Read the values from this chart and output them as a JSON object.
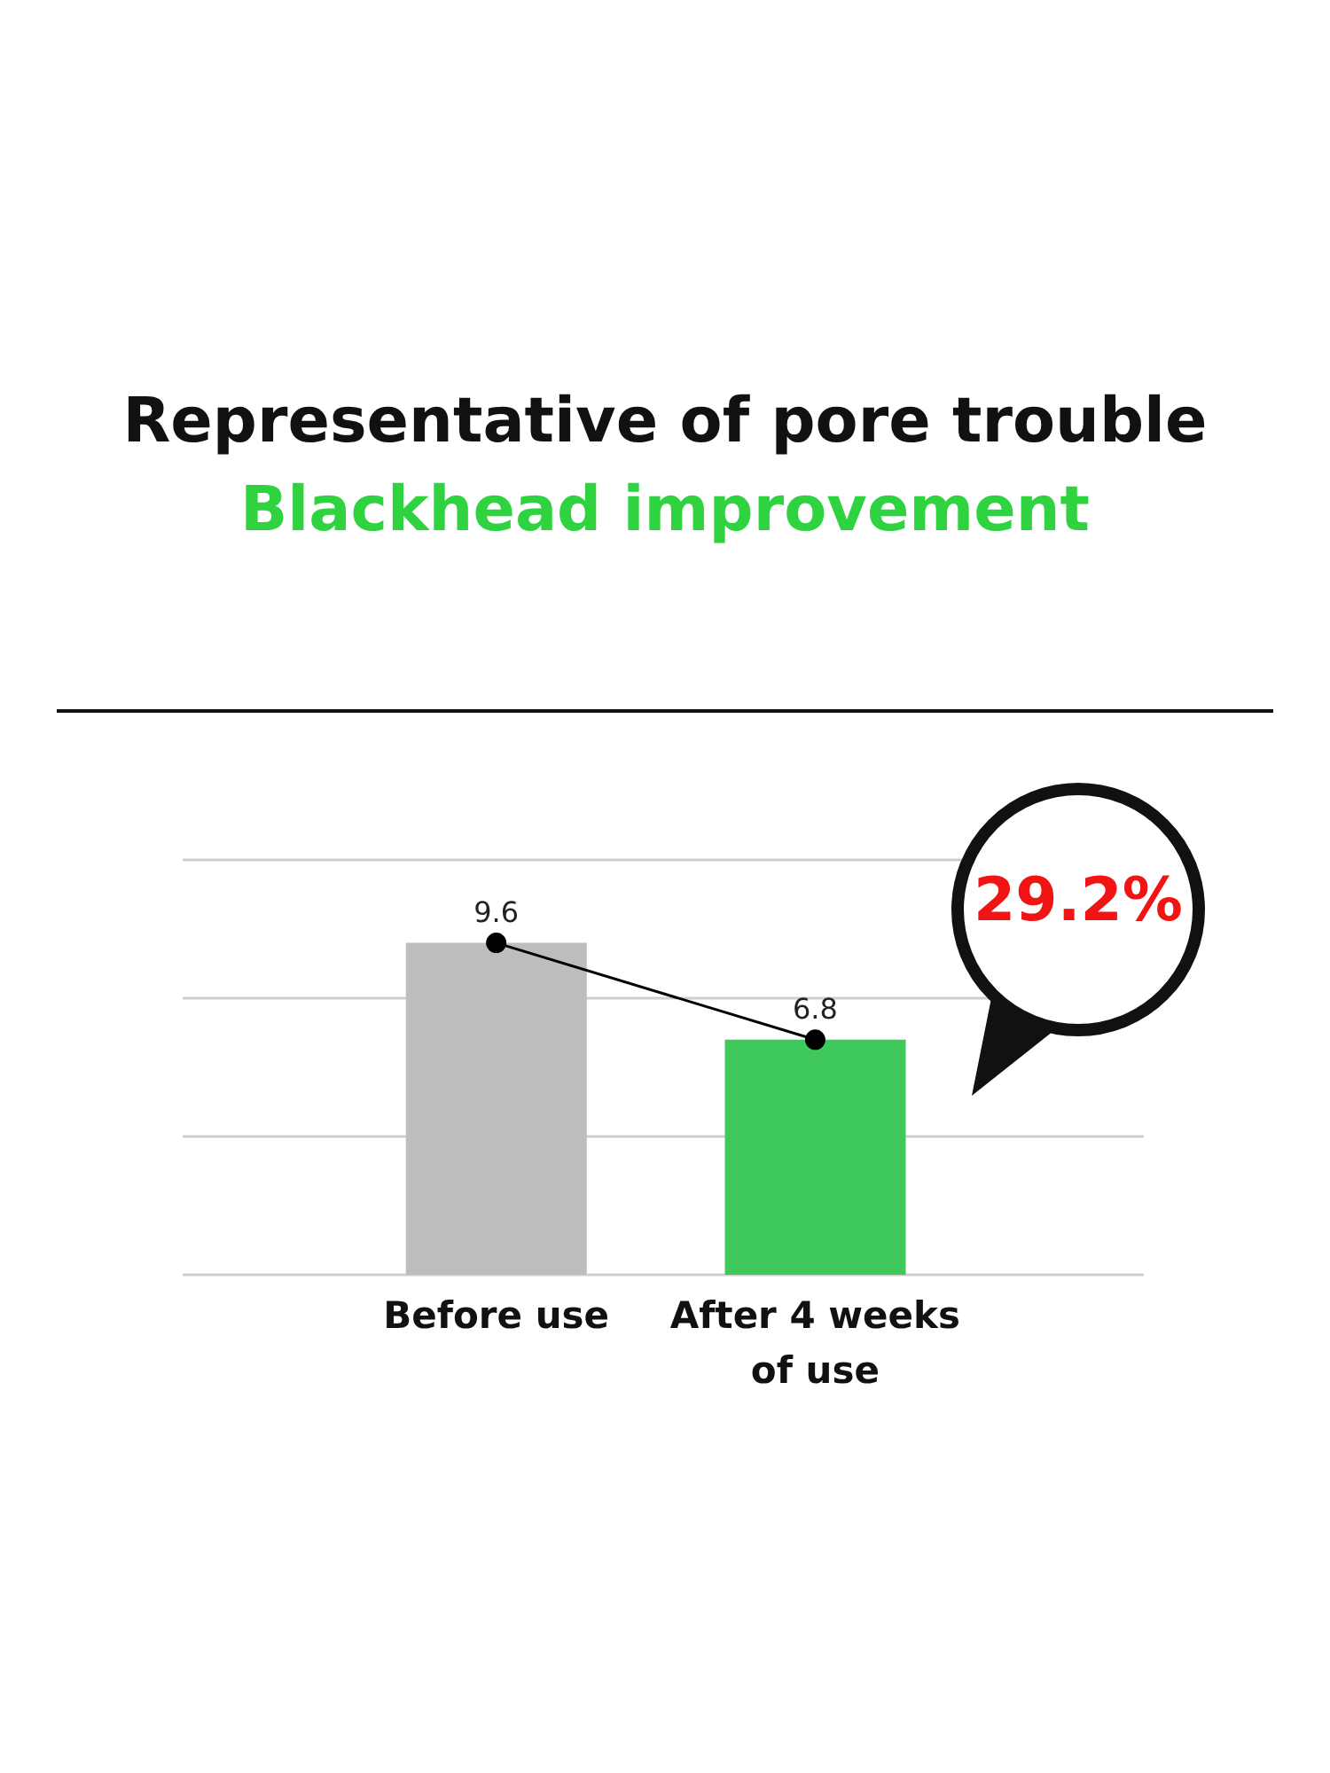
{
  "chart_data": {
    "type": "bar",
    "title": "Representative of pore trouble",
    "subtitle": "Blackhead improvement",
    "categories": [
      "Before use",
      "After 4 weeks of use"
    ],
    "series": [
      {
        "colors": [
          "#bdbdbd",
          "#3ec95a"
        ],
        "values": [
          9.6,
          6.8
        ]
      },
      {
        "type": "line",
        "color": "#000000",
        "values": [
          9.6,
          6.8
        ],
        "value_labels": [
          "9.6",
          "6.8"
        ]
      }
    ],
    "ylim": [
      0,
      12
    ],
    "yticks": [
      {
        "value": 0,
        "label": null
      },
      {
        "value": 4,
        "label": null
      },
      {
        "value": 8,
        "label": null
      },
      {
        "value": 12,
        "label": null
      }
    ],
    "tick_labels": "x",
    "grid": "y",
    "marker": "circle",
    "annotations": [
      "29.2%"
    ]
  }
}
